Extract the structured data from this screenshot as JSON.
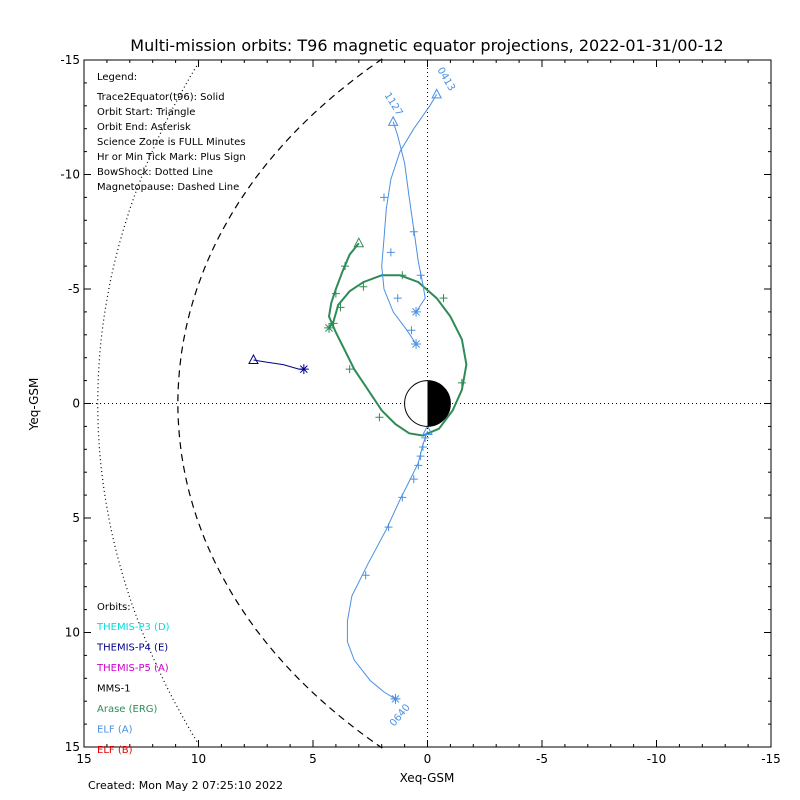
{
  "chart_data": {
    "type": "line",
    "title": "Multi-mission orbits: T96 magnetic equator projections, 2022-01-31/00-12",
    "xlabel": "Xeq-GSM",
    "ylabel": "Yeq-GSM",
    "xlim": [
      15,
      -15
    ],
    "ylim": [
      -15,
      15
    ],
    "x_ticks": [
      "15",
      "10",
      "5",
      "0",
      "-5",
      "-10",
      "-15"
    ],
    "y_ticks": [
      "-15",
      "-10",
      "-5",
      "0",
      "5",
      "10",
      "15"
    ],
    "legend": {
      "heading": "Legend:",
      "lines": [
        "Trace2Equator(t96): Solid",
        "Orbit Start: Triangle",
        "Orbit End: Asterisk",
        "Science Zone is FULL Minutes",
        "Hr or Min Tick Mark: Plus Sign",
        "BowShock: Dotted Line",
        "Magnetopause: Dashed Line"
      ]
    },
    "orbits_key": {
      "heading": "Orbits:",
      "items": [
        {
          "label": "THEMIS-P3 (D)",
          "color": "#00e0e0"
        },
        {
          "label": "THEMIS-P4 (E)",
          "color": "#00008b"
        },
        {
          "label": "THEMIS-P5 (A)",
          "color": "#d000d0"
        },
        {
          "label": "MMS-1",
          "color": "#000000"
        },
        {
          "label": "Arase (ERG)",
          "color": "#2e8b57"
        },
        {
          "label": "ELF (A)",
          "color": "#4a90e2"
        },
        {
          "label": "ELF (B)",
          "color": "#e00000"
        }
      ]
    },
    "trace_labels": [
      "0413",
      "1127",
      "0640"
    ],
    "series": [
      {
        "name": "Arase (ERG)",
        "color": "#2e8b57",
        "points": [
          [
            3.0,
            -7.0
          ],
          [
            3.4,
            -6.5
          ],
          [
            3.7,
            -5.8
          ],
          [
            4.0,
            -5.0
          ],
          [
            4.2,
            -4.4
          ],
          [
            4.3,
            -3.8
          ],
          [
            4.0,
            -3.1
          ],
          [
            3.6,
            -2.3
          ],
          [
            3.2,
            -1.5
          ],
          [
            2.6,
            -0.6
          ],
          [
            2.0,
            0.3
          ],
          [
            1.4,
            0.9
          ],
          [
            0.8,
            1.3
          ],
          [
            0.2,
            1.4
          ],
          [
            -0.5,
            1.1
          ],
          [
            -1.1,
            0.3
          ],
          [
            -1.5,
            -0.6
          ],
          [
            -1.7,
            -1.7
          ],
          [
            -1.5,
            -2.8
          ],
          [
            -1.0,
            -3.8
          ],
          [
            -0.4,
            -4.6
          ],
          [
            0.4,
            -5.3
          ],
          [
            1.2,
            -5.6
          ],
          [
            2.0,
            -5.6
          ],
          [
            2.8,
            -5.3
          ],
          [
            3.4,
            -4.9
          ],
          [
            3.9,
            -4.3
          ],
          [
            4.1,
            -3.6
          ],
          [
            4.3,
            -3.3
          ]
        ],
        "start": [
          3.0,
          -7.0
        ],
        "end": [
          4.3,
          -3.3
        ],
        "ticks": [
          [
            3.6,
            -6.0
          ],
          [
            4.0,
            -4.8
          ],
          [
            4.1,
            -3.5
          ],
          [
            3.4,
            -1.5
          ],
          [
            2.1,
            0.6
          ],
          [
            -0.7,
            -4.6
          ],
          [
            -1.5,
            -0.9
          ],
          [
            1.1,
            -5.6
          ],
          [
            2.8,
            -5.1
          ],
          [
            3.8,
            -4.2
          ]
        ]
      },
      {
        "name": "ELF (A) 0413",
        "color": "#4a90e2",
        "points": [
          [
            -0.4,
            -13.5
          ],
          [
            -0.1,
            -13.0
          ],
          [
            0.6,
            -12.0
          ],
          [
            1.2,
            -11.0
          ],
          [
            1.6,
            -9.8
          ],
          [
            1.8,
            -8.5
          ],
          [
            1.9,
            -7.2
          ],
          [
            2.0,
            -6.0
          ],
          [
            1.9,
            -5.0
          ],
          [
            1.5,
            -4.0
          ],
          [
            0.9,
            -3.2
          ],
          [
            0.5,
            -2.6
          ]
        ],
        "start": [
          -0.4,
          -13.5
        ],
        "end": [
          0.5,
          -2.6
        ],
        "ticks": [
          [
            1.9,
            -9.0
          ],
          [
            1.6,
            -6.6
          ],
          [
            1.3,
            -4.6
          ],
          [
            0.7,
            -3.2
          ]
        ]
      },
      {
        "name": "ELF (A) 1127",
        "color": "#4a90e2",
        "points": [
          [
            1.5,
            -12.3
          ],
          [
            1.3,
            -11.7
          ],
          [
            1.0,
            -10.5
          ],
          [
            0.8,
            -9.0
          ],
          [
            0.6,
            -7.6
          ],
          [
            0.4,
            -6.2
          ],
          [
            0.2,
            -5.2
          ],
          [
            0.1,
            -4.6
          ],
          [
            0.5,
            -4.0
          ]
        ],
        "start": [
          1.5,
          -12.3
        ],
        "end": [
          0.5,
          -4.0
        ],
        "ticks": [
          [
            0.6,
            -7.5
          ],
          [
            0.3,
            -5.6
          ]
        ]
      },
      {
        "name": "ELF (A) 0640",
        "color": "#4a90e2",
        "points": [
          [
            0.0,
            1.2
          ],
          [
            0.2,
            1.8
          ],
          [
            0.4,
            2.6
          ],
          [
            0.8,
            3.4
          ],
          [
            1.2,
            4.2
          ],
          [
            1.8,
            5.5
          ],
          [
            2.6,
            7.0
          ],
          [
            3.3,
            8.4
          ],
          [
            3.5,
            9.5
          ],
          [
            3.5,
            10.4
          ],
          [
            3.2,
            11.2
          ],
          [
            2.5,
            12.1
          ],
          [
            1.9,
            12.6
          ],
          [
            1.4,
            12.9
          ]
        ],
        "start": [
          0.0,
          1.2
        ],
        "end": [
          1.4,
          12.9
        ],
        "ticks": [
          [
            0.1,
            1.5
          ],
          [
            0.2,
            1.9
          ],
          [
            0.3,
            2.3
          ],
          [
            0.4,
            2.7
          ],
          [
            0.6,
            3.3
          ],
          [
            1.1,
            4.1
          ],
          [
            1.7,
            5.4
          ],
          [
            2.7,
            7.5
          ],
          [
            1.4,
            12.9
          ]
        ]
      },
      {
        "name": "THEMIS-P4 (E)",
        "color": "#00008b",
        "points": [
          [
            7.6,
            -1.9
          ],
          [
            7.0,
            -1.8
          ],
          [
            6.3,
            -1.7
          ],
          [
            5.6,
            -1.5
          ],
          [
            5.4,
            -1.5
          ]
        ],
        "start": [
          7.6,
          -1.9
        ],
        "end": [
          5.4,
          -1.5
        ],
        "ticks": []
      }
    ],
    "grid": "dotted zero lines",
    "legend_placement": "top-left"
  },
  "created": "Created: Mon May  2 07:25:10 2022"
}
